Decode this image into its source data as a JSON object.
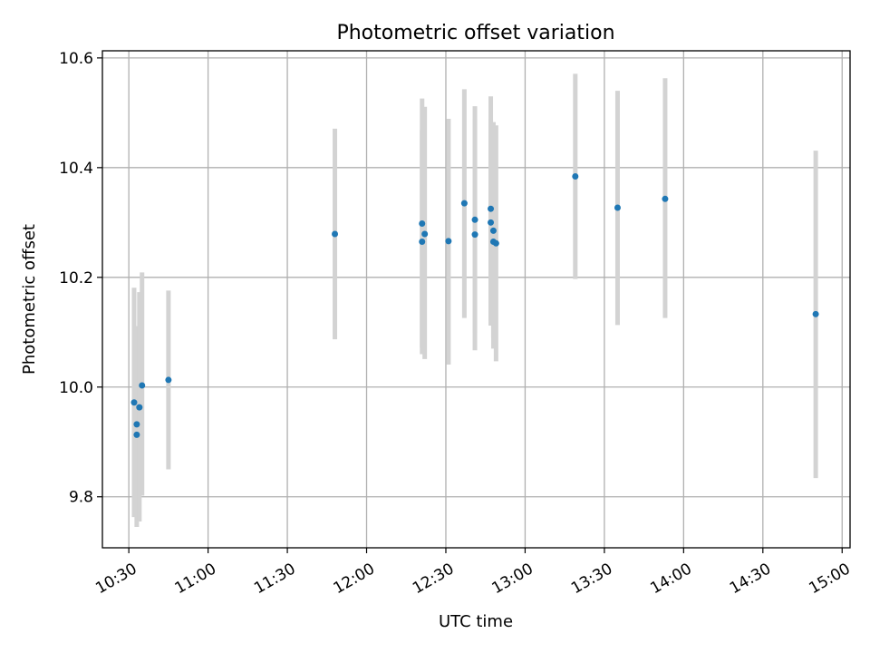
{
  "chart_data": {
    "type": "scatter",
    "title": "Photometric offset variation",
    "xlabel": "UTC time",
    "ylabel": "Photometric offset",
    "xlim": [
      "10:20",
      "15:03"
    ],
    "ylim": [
      9.707,
      10.613
    ],
    "x_ticks": [
      "10:30",
      "11:00",
      "11:30",
      "12:00",
      "12:30",
      "13:00",
      "13:30",
      "14:00",
      "14:30",
      "15:00"
    ],
    "y_ticks": [
      9.8,
      10.0,
      10.2,
      10.4,
      10.6
    ],
    "y_tick_labels": [
      "9.8",
      "10.0",
      "10.2",
      "10.4",
      "10.6"
    ],
    "grid": true,
    "errorbar_color": "#d3d3d3",
    "marker_color": "#1f77b4",
    "points": [
      {
        "t": "10:32",
        "y": 9.972,
        "ylo": 9.763,
        "yhi": 10.181
      },
      {
        "t": "10:33",
        "y": 9.913,
        "ylo": 9.745,
        "yhi": 10.111
      },
      {
        "t": "10:33",
        "y": 9.932,
        "ylo": 9.763,
        "yhi": 10.111
      },
      {
        "t": "10:34",
        "y": 9.963,
        "ylo": 9.755,
        "yhi": 10.173
      },
      {
        "t": "10:35",
        "y": 10.003,
        "ylo": 9.802,
        "yhi": 10.209
      },
      {
        "t": "10:45",
        "y": 10.013,
        "ylo": 9.85,
        "yhi": 10.176
      },
      {
        "t": "11:48",
        "y": 10.279,
        "ylo": 10.087,
        "yhi": 10.471
      },
      {
        "t": "12:21",
        "y": 10.265,
        "ylo": 10.06,
        "yhi": 10.468
      },
      {
        "t": "12:21",
        "y": 10.298,
        "ylo": 10.072,
        "yhi": 10.526
      },
      {
        "t": "12:22",
        "y": 10.279,
        "ylo": 10.051,
        "yhi": 10.511
      },
      {
        "t": "12:31",
        "y": 10.266,
        "ylo": 10.041,
        "yhi": 10.489
      },
      {
        "t": "12:37",
        "y": 10.335,
        "ylo": 10.126,
        "yhi": 10.543
      },
      {
        "t": "12:41",
        "y": 10.305,
        "ylo": 10.098,
        "yhi": 10.512
      },
      {
        "t": "12:41",
        "y": 10.278,
        "ylo": 10.067,
        "yhi": 10.489
      },
      {
        "t": "12:47",
        "y": 10.325,
        "ylo": 10.12,
        "yhi": 10.53
      },
      {
        "t": "12:47",
        "y": 10.3,
        "ylo": 10.112,
        "yhi": 10.488
      },
      {
        "t": "12:48",
        "y": 10.285,
        "ylo": 10.09,
        "yhi": 10.483
      },
      {
        "t": "12:48",
        "y": 10.265,
        "ylo": 10.07,
        "yhi": 10.46
      },
      {
        "t": "12:49",
        "y": 10.262,
        "ylo": 10.047,
        "yhi": 10.477
      },
      {
        "t": "13:19",
        "y": 10.384,
        "ylo": 10.197,
        "yhi": 10.571
      },
      {
        "t": "13:35",
        "y": 10.327,
        "ylo": 10.113,
        "yhi": 10.54
      },
      {
        "t": "13:53",
        "y": 10.343,
        "ylo": 10.126,
        "yhi": 10.563
      },
      {
        "t": "14:50",
        "y": 10.133,
        "ylo": 9.834,
        "yhi": 10.431
      }
    ]
  }
}
